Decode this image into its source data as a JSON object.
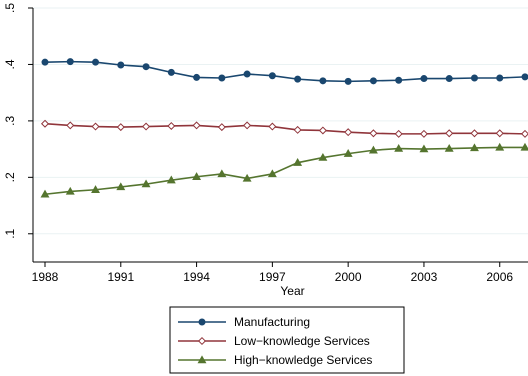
{
  "chart_data": {
    "type": "line",
    "title": "",
    "xlabel": "Year",
    "ylabel": "",
    "xlim": [
      1988,
      2007
    ],
    "ylim": [
      0.05,
      0.5
    ],
    "x_ticks": [
      1988,
      1991,
      1994,
      1997,
      2000,
      2003,
      2006
    ],
    "x_tick_labels": [
      "1988",
      "1991",
      "1994",
      "1997",
      "2000",
      "2003",
      "2006"
    ],
    "y_ticks": [
      0.1,
      0.2,
      0.3,
      0.4,
      0.5
    ],
    "y_tick_labels": [
      ".1",
      ".2",
      ".3",
      ".4",
      ".5"
    ],
    "grid": "horizontal",
    "legend_position": "bottom",
    "x": [
      1988,
      1989,
      1990,
      1991,
      1992,
      1993,
      1994,
      1995,
      1996,
      1997,
      1998,
      1999,
      2000,
      2001,
      2002,
      2003,
      2004,
      2005,
      2006,
      2007
    ],
    "series": [
      {
        "name": "Manufacturing",
        "color": "#1a476f",
        "marker": "circle",
        "values": [
          0.404,
          0.405,
          0.404,
          0.399,
          0.396,
          0.386,
          0.377,
          0.376,
          0.383,
          0.38,
          0.374,
          0.371,
          0.37,
          0.371,
          0.372,
          0.375,
          0.375,
          0.376,
          0.376,
          0.378
        ]
      },
      {
        "name": "Low−knowledge Services",
        "color": "#90353b",
        "marker": "diamond",
        "values": [
          0.295,
          0.292,
          0.29,
          0.289,
          0.29,
          0.291,
          0.292,
          0.289,
          0.292,
          0.29,
          0.284,
          0.283,
          0.28,
          0.278,
          0.277,
          0.277,
          0.278,
          0.278,
          0.278,
          0.277
        ]
      },
      {
        "name": "High−knowledge Services",
        "color": "#55752f",
        "marker": "triangle",
        "values": [
          0.17,
          0.175,
          0.178,
          0.183,
          0.188,
          0.195,
          0.201,
          0.206,
          0.198,
          0.206,
          0.226,
          0.235,
          0.242,
          0.248,
          0.251,
          0.25,
          0.251,
          0.252,
          0.253,
          0.253
        ]
      }
    ]
  }
}
